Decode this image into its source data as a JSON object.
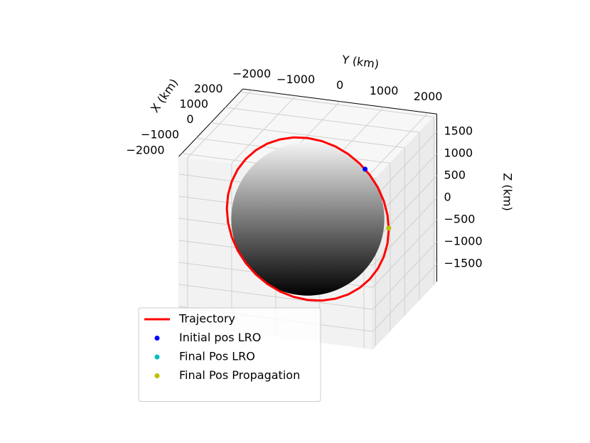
{
  "chart_data": {
    "type": "line3d",
    "xlabel": "X (km)",
    "ylabel": "Y (km)",
    "zlabel": "Z (km)",
    "xlim": [
      -2200,
      2200
    ],
    "ylim": [
      -2200,
      2200
    ],
    "zlim": [
      -1900,
      1900
    ],
    "xticks": [
      {
        "value": -2000,
        "label": "−2000"
      },
      {
        "value": -1000,
        "label": "−1000"
      },
      0,
      1000,
      2000
    ],
    "yticks": [
      {
        "value": -2000,
        "label": "−2000"
      },
      {
        "value": -1000,
        "label": "−1000"
      },
      0,
      1000,
      2000
    ],
    "zticks": [
      {
        "value": -1500,
        "label": "−1500"
      },
      {
        "value": -1000,
        "label": "−1000"
      },
      {
        "value": -500,
        "label": "−500"
      },
      0,
      500,
      1000,
      1500
    ],
    "grid": true,
    "sphere": {
      "radius": 1737
    },
    "legend": "lower left",
    "series": [
      {
        "name": "Trajectory",
        "color": "#ff0000",
        "kind": "line",
        "x": [
          0,
          0,
          0,
          0,
          0,
          0,
          0,
          0,
          0,
          0,
          0,
          0,
          0,
          0,
          0,
          0,
          0,
          0,
          0,
          0,
          0,
          0,
          0,
          0,
          0,
          0,
          0,
          0,
          0,
          0,
          0,
          0,
          0,
          0,
          0,
          0,
          0
        ],
        "y": [
          0,
          319,
          628,
          919,
          1181,
          1407,
          1591,
          1726,
          1809,
          1837,
          1809,
          1726,
          1591,
          1407,
          1181,
          919,
          628,
          319,
          0,
          -319,
          -628,
          -919,
          -1181,
          -1407,
          -1591,
          -1726,
          -1809,
          -1837,
          -1809,
          -1726,
          -1591,
          -1407,
          -1181,
          -919,
          -628,
          -319,
          0
        ],
        "z": [
          1837,
          1809,
          1726,
          1591,
          1407,
          1181,
          919,
          628,
          319,
          0,
          -319,
          -628,
          -919,
          -1181,
          -1407,
          -1591,
          -1726,
          -1809,
          -1837,
          -1809,
          -1726,
          -1591,
          -1407,
          -1181,
          -919,
          -628,
          -319,
          0,
          319,
          628,
          919,
          1181,
          1407,
          1591,
          1726,
          1809,
          1837
        ]
      },
      {
        "name": "Initial pos LRO",
        "color": "#0000ff",
        "kind": "point",
        "x": [
          0
        ],
        "y": [
          1299
        ],
        "z": [
          1299
        ]
      },
      {
        "name": "Final Pos LRO",
        "color": "#00bfbf",
        "kind": "point",
        "x": [
          0
        ],
        "y": [
          1836
        ],
        "z": [
          30
        ]
      },
      {
        "name": "Final Pos Propagation",
        "color": "#bfbf00",
        "kind": "point",
        "x": [
          0
        ],
        "y": [
          1836
        ],
        "z": [
          30
        ]
      }
    ]
  }
}
